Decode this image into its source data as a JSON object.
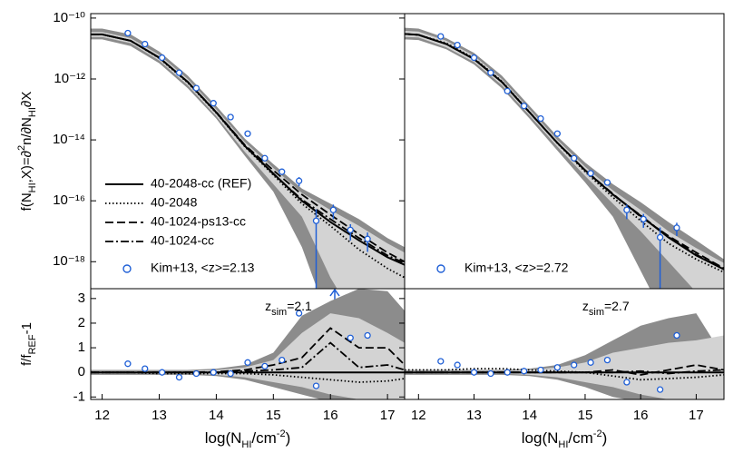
{
  "chart_data": [
    {
      "type": "line",
      "log": true,
      "ylabel": [
        {
          "text": "f(N"
        },
        {
          "text": "HI",
          "shift": "sub"
        },
        {
          "text": ",X)=∂"
        },
        {
          "text": "2",
          "shift": "super"
        },
        {
          "text": "n/∂N"
        },
        {
          "text": "HI",
          "shift": "sub"
        },
        {
          "text": "∂X"
        }
      ],
      "xlim": [
        11.8,
        17.3
      ],
      "ylim": [
        1.3e-19,
        1.4e-10
      ],
      "yticks": [
        {
          "value": 1e-10,
          "label": "10⁻¹⁰"
        },
        {
          "value": 1e-12,
          "label": "10⁻¹²"
        },
        {
          "value": 1e-14,
          "label": "10⁻¹⁴"
        },
        {
          "value": 1e-16,
          "label": "10⁻¹⁶"
        },
        {
          "value": 1e-18,
          "label": "10⁻¹⁸"
        }
      ],
      "legend": "lower left",
      "x": [
        11.8,
        12,
        12.5,
        13,
        13.5,
        14,
        14.5,
        15,
        15.5,
        16,
        16.5,
        17,
        17.3
      ],
      "bands": [
        {
          "color": "#8c8c8c",
          "upper": [
            4.5e-11,
            4.5e-11,
            2.9e-11,
            8e-12,
            1.3e-12,
            1.3e-13,
            1.1e-14,
            1.6e-15,
            2.5e-16,
            8e-17,
            2.5e-17,
            6e-18,
            3e-18
          ],
          "lower": [
            2e-11,
            2e-11,
            1.2e-11,
            3.3e-12,
            5e-13,
            5e-14,
            3e-15,
            2e-16,
            3e-18,
            0,
            0,
            0,
            0
          ]
        },
        {
          "color": "#d3d3d3",
          "upper": [
            3.5e-11,
            3.5e-11,
            2.2e-11,
            6.2e-12,
            1e-12,
            1e-13,
            8.5e-15,
            1.2e-15,
            1.8e-16,
            5e-17,
            1.5e-17,
            4e-18,
            2e-18
          ],
          "lower": [
            2.4e-11,
            2.4e-11,
            1.5e-11,
            4e-12,
            6.2e-13,
            6e-14,
            4e-15,
            3.5e-16,
            3e-17,
            3e-19,
            0,
            0,
            0
          ]
        }
      ],
      "series": [
        {
          "name": "40-2048-cc (REF)",
          "color": "#000000",
          "style": "solid",
          "values": [
            2.9e-11,
            2.9e-11,
            1.8e-11,
            5e-12,
            8e-13,
            8e-14,
            6.3e-15,
            7.9e-16,
            1e-16,
            2e-17,
            5e-18,
            1.4e-18,
            7.9e-19
          ]
        },
        {
          "name": "40-2048",
          "color": "#000000",
          "style": "dotted",
          "values": [
            2.9e-11,
            2.9e-11,
            1.8e-11,
            4.8e-12,
            7.6e-13,
            7.6e-14,
            6e-15,
            7e-16,
            8e-17,
            1.5e-17,
            2.5e-18,
            6e-19,
            3e-19
          ]
        },
        {
          "name": "40-1024-ps13-cc",
          "color": "#000000",
          "style": "dashed",
          "values": [
            2.9e-11,
            2.9e-11,
            1.8e-11,
            5e-12,
            8e-13,
            8.2e-14,
            6.8e-15,
            1e-15,
            1.6e-16,
            3.5e-17,
            8e-18,
            2e-18,
            1e-18
          ]
        },
        {
          "name": "40-1024-cc",
          "color": "#000000",
          "style": "dashdot",
          "values": [
            2.9e-11,
            2.9e-11,
            1.8e-11,
            5e-12,
            8e-13,
            8e-14,
            6.5e-15,
            7.5e-16,
            1.1e-16,
            2.5e-17,
            6e-18,
            1.6e-18,
            9e-19
          ]
        }
      ],
      "points": {
        "name": "Kim+13, <z>=2.13",
        "color": "#1f5fd6",
        "x": [
          12.45,
          12.75,
          13.05,
          13.35,
          13.65,
          13.95,
          14.25,
          14.55,
          14.85,
          15.15,
          15.45,
          15.75,
          16.05,
          16.35,
          16.65
        ],
        "values": [
          3.2e-11,
          1.4e-11,
          5e-12,
          1.6e-12,
          5e-13,
          1.6e-13,
          5.6e-14,
          1.6e-14,
          2.5e-15,
          9e-16,
          4.5e-16,
          2.2e-17,
          5e-17,
          1.1e-17,
          5.6e-18
        ],
        "errors": [
          2e-12,
          1e-12,
          4e-13,
          1.2e-13,
          4e-14,
          1.2e-14,
          4e-15,
          1.5e-15,
          3e-16,
          1.5e-16,
          1.5e-16,
          3e-17,
          2.5e-17,
          6e-18,
          3.5e-18
        ]
      }
    },
    {
      "type": "line",
      "log": true,
      "xlim": [
        11.75,
        17.5
      ],
      "ylim": [
        1.3e-19,
        1.4e-10
      ],
      "legend": "lower left",
      "x": [
        11.75,
        12,
        12.5,
        13,
        13.5,
        14,
        14.5,
        15,
        15.5,
        16,
        16.5,
        17,
        17.5
      ],
      "bands": [
        {
          "color": "#8c8c8c",
          "upper": [
            4.8e-11,
            4.5e-11,
            2.2e-11,
            7.2e-12,
            1.3e-12,
            1.3e-13,
            1.3e-14,
            1.8e-15,
            3.5e-16,
            9e-17,
            2e-17,
            5e-18,
            1.2e-18
          ],
          "lower": [
            2e-11,
            1.9e-11,
            9.5e-12,
            3e-12,
            5e-13,
            5e-14,
            4.5e-15,
            4e-16,
            3e-17,
            5e-19,
            0,
            0,
            0
          ]
        },
        {
          "color": "#d3d3d3",
          "upper": [
            3.8e-11,
            3.6e-11,
            1.8e-11,
            5.8e-12,
            1e-12,
            1e-13,
            1e-14,
            1.3e-15,
            2.2e-16,
            5e-17,
            1e-17,
            2.8e-18,
            9e-19
          ],
          "lower": [
            2.4e-11,
            2.3e-11,
            1.1e-11,
            3.6e-12,
            6.3e-13,
            6.3e-14,
            6e-15,
            6.5e-16,
            8e-17,
            1e-17,
            1e-18,
            1e-19,
            0
          ]
        }
      ],
      "series": [
        {
          "color": "#000000",
          "style": "solid",
          "values": [
            3e-11,
            2.8e-11,
            1.4e-11,
            4.5e-12,
            8e-13,
            8e-14,
            8e-15,
            1e-15,
            1.6e-16,
            3.2e-17,
            6.3e-18,
            1.6e-18,
            5.6e-19
          ]
        },
        {
          "color": "#000000",
          "style": "dotted",
          "values": [
            3e-11,
            2.8e-11,
            1.5e-11,
            4.8e-12,
            8.5e-13,
            8.2e-14,
            7.8e-15,
            9e-16,
            1.3e-16,
            2.2e-17,
            4e-18,
            1.2e-18,
            4.5e-19
          ]
        },
        {
          "color": "#000000",
          "style": "dashed",
          "values": [
            3e-11,
            2.8e-11,
            1.4e-11,
            4.5e-12,
            8e-13,
            8e-14,
            8e-15,
            1e-15,
            1.7e-16,
            3e-17,
            7e-18,
            2e-18,
            6e-19
          ]
        },
        {
          "color": "#000000",
          "style": "dashdot",
          "values": [
            3e-11,
            2.8e-11,
            1.4e-11,
            4.5e-12,
            8e-13,
            8e-14,
            8e-15,
            1e-15,
            1.6e-16,
            3.3e-17,
            6.5e-18,
            1.7e-18,
            6e-19
          ]
        }
      ],
      "points": {
        "name": "Kim+13, <z>=2.72",
        "color": "#1f5fd6",
        "x": [
          12.4,
          12.7,
          13,
          13.3,
          13.6,
          13.9,
          14.2,
          14.5,
          14.8,
          15.1,
          15.4,
          15.75,
          16.05,
          16.35,
          16.65
        ],
        "values": [
          2.5e-11,
          1.3e-11,
          5e-12,
          1.6e-12,
          4e-13,
          1.3e-13,
          5e-14,
          1.6e-14,
          2.5e-15,
          8e-16,
          4e-16,
          5e-17,
          2.5e-17,
          6.3e-18,
          1.3e-17
        ],
        "errors": [
          2e-12,
          1e-12,
          4e-13,
          1.2e-13,
          3e-14,
          1e-14,
          4e-15,
          1.5e-15,
          3e-16,
          1.2e-16,
          8e-17,
          2.5e-17,
          1.2e-17,
          7e-18,
          6e-18
        ]
      }
    },
    {
      "type": "line",
      "log": false,
      "ylabel": [
        {
          "text": "f/f"
        },
        {
          "text": "REF",
          "shift": "sub"
        },
        {
          "text": "-1"
        }
      ],
      "xlabel": [
        {
          "text": "log(N"
        },
        {
          "text": "HI",
          "shift": "sub"
        },
        {
          "text": "/cm"
        },
        {
          "text": "-2",
          "shift": "super"
        },
        {
          "text": ")"
        }
      ],
      "annotation": [
        {
          "text": "z"
        },
        {
          "text": "sim",
          "shift": "sub"
        },
        {
          "text": "=2.1"
        }
      ],
      "xlim": [
        11.8,
        17.3
      ],
      "ylim": [
        -1.1,
        3.4
      ],
      "xticks": [
        12,
        13,
        14,
        15,
        16,
        17
      ],
      "yticks": [
        -1,
        0,
        1,
        2,
        3
      ],
      "x": [
        11.8,
        12,
        12.5,
        13,
        13.5,
        14,
        14.5,
        15,
        15.5,
        16,
        16.5,
        17,
        17.3
      ],
      "bands": [
        {
          "color": "#8c8c8c",
          "upper": [
            0.1,
            0.1,
            0.1,
            0.1,
            0.1,
            0.15,
            0.3,
            0.8,
            2.3,
            2.9,
            3.4,
            3.3,
            2.5
          ],
          "lower": [
            -0.1,
            -0.1,
            -0.1,
            -0.1,
            -0.1,
            -0.15,
            -0.3,
            -0.6,
            -0.9,
            -1.2,
            -1.2,
            -1.2,
            -1.2
          ]
        },
        {
          "color": "#d3d3d3",
          "upper": [
            0.05,
            0.05,
            0.05,
            0.05,
            0.05,
            0.1,
            0.2,
            0.5,
            1.6,
            2.4,
            2.2,
            1.6,
            1.2
          ],
          "lower": [
            -0.05,
            -0.05,
            -0.05,
            -0.05,
            -0.05,
            -0.1,
            -0.2,
            -0.4,
            -0.6,
            -0.9,
            -1.1,
            -1.1,
            -1.1
          ]
        }
      ],
      "series": [
        {
          "color": "#000000",
          "style": "solid",
          "values": [
            0,
            0,
            0,
            0,
            0,
            0,
            0,
            0,
            0,
            0,
            0,
            0,
            0
          ]
        },
        {
          "color": "#000000",
          "style": "dotted",
          "values": [
            0,
            0,
            0,
            -0.05,
            -0.05,
            -0.05,
            -0.05,
            -0.1,
            -0.2,
            -0.3,
            -0.4,
            -0.35,
            -0.25
          ]
        },
        {
          "color": "#000000",
          "style": "dashed",
          "values": [
            0,
            0,
            0,
            0,
            0,
            0.02,
            0.1,
            0.3,
            0.6,
            1.8,
            1.0,
            1.0,
            0.3
          ]
        },
        {
          "color": "#000000",
          "style": "dashdot",
          "values": [
            0,
            0,
            0,
            0,
            0,
            0,
            0.05,
            0.1,
            0.2,
            1.2,
            0.2,
            0.3,
            0.1
          ]
        }
      ],
      "points": {
        "color": "#1f5fd6",
        "x": [
          12.45,
          12.75,
          13.05,
          13.35,
          13.65,
          13.95,
          14.25,
          14.55,
          14.85,
          15.15,
          15.45,
          15.75,
          16.35,
          16.65
        ],
        "values": [
          0.35,
          0.15,
          0.0,
          -0.2,
          -0.05,
          0.0,
          -0.05,
          0.4,
          0.25,
          0.5,
          2.4,
          -0.55,
          1.4,
          1.5
        ]
      }
    },
    {
      "type": "line",
      "log": false,
      "xlabel": [
        {
          "text": "log(N"
        },
        {
          "text": "HI",
          "shift": "sub"
        },
        {
          "text": "/cm"
        },
        {
          "text": "-2",
          "shift": "super"
        },
        {
          "text": ")"
        }
      ],
      "annotation": [
        {
          "text": "z"
        },
        {
          "text": "sim",
          "shift": "sub"
        },
        {
          "text": "=2.7"
        }
      ],
      "xlim": [
        11.75,
        17.5
      ],
      "ylim": [
        -1.1,
        3.4
      ],
      "xticks": [
        12,
        13,
        14,
        15,
        16,
        17
      ],
      "x": [
        11.75,
        12,
        12.5,
        13,
        13.5,
        14,
        14.5,
        15,
        15.5,
        16,
        16.5,
        17,
        17.5
      ],
      "bands": [
        {
          "color": "#8c8c8c",
          "upper": [
            0.1,
            0.1,
            0.1,
            0.1,
            0.1,
            0.15,
            0.3,
            0.7,
            1.3,
            1.9,
            2.2,
            2.4,
            0.6
          ],
          "lower": [
            -0.1,
            -0.1,
            -0.1,
            -0.1,
            -0.1,
            -0.15,
            -0.3,
            -0.6,
            -1.0,
            -1.2,
            -1.2,
            -1.2,
            -1.2
          ]
        },
        {
          "color": "#d3d3d3",
          "upper": [
            0.05,
            0.05,
            0.05,
            0.05,
            0.05,
            0.1,
            0.2,
            0.4,
            0.8,
            1.0,
            1.2,
            1.3,
            1.5
          ],
          "lower": [
            -0.05,
            -0.05,
            -0.05,
            -0.05,
            -0.05,
            -0.1,
            -0.2,
            -0.4,
            -0.6,
            -0.9,
            -1.1,
            -1.1,
            -1.1
          ]
        }
      ],
      "series": [
        {
          "color": "#000000",
          "style": "solid",
          "values": [
            0,
            0,
            0,
            0,
            0,
            0,
            0,
            0,
            0,
            0,
            0,
            0,
            0
          ]
        },
        {
          "color": "#000000",
          "style": "dotted",
          "values": [
            0.1,
            0.1,
            0.1,
            0.15,
            0.15,
            0.1,
            0.05,
            0,
            -0.15,
            -0.3,
            -0.25,
            -0.2,
            -0.1
          ]
        },
        {
          "color": "#000000",
          "style": "dashed",
          "values": [
            0,
            0,
            0,
            0,
            0,
            0,
            0,
            0,
            0.1,
            -0.1,
            0.1,
            0.3,
            0.1
          ]
        },
        {
          "color": "#000000",
          "style": "dashdot",
          "values": [
            0,
            0,
            0,
            0,
            0,
            0,
            0,
            0,
            0,
            0.05,
            -0.05,
            0.05,
            0.1
          ]
        }
      ],
      "points": {
        "color": "#1f5fd6",
        "x": [
          12.4,
          12.7,
          13,
          13.3,
          13.6,
          13.9,
          14.2,
          14.5,
          14.8,
          15.1,
          15.4,
          15.75,
          16.35,
          16.65
        ],
        "values": [
          0.45,
          0.3,
          0.0,
          -0.05,
          0.0,
          0.05,
          0.1,
          0.2,
          0.3,
          0.4,
          0.5,
          -0.4,
          -0.7,
          1.5
        ]
      }
    }
  ]
}
